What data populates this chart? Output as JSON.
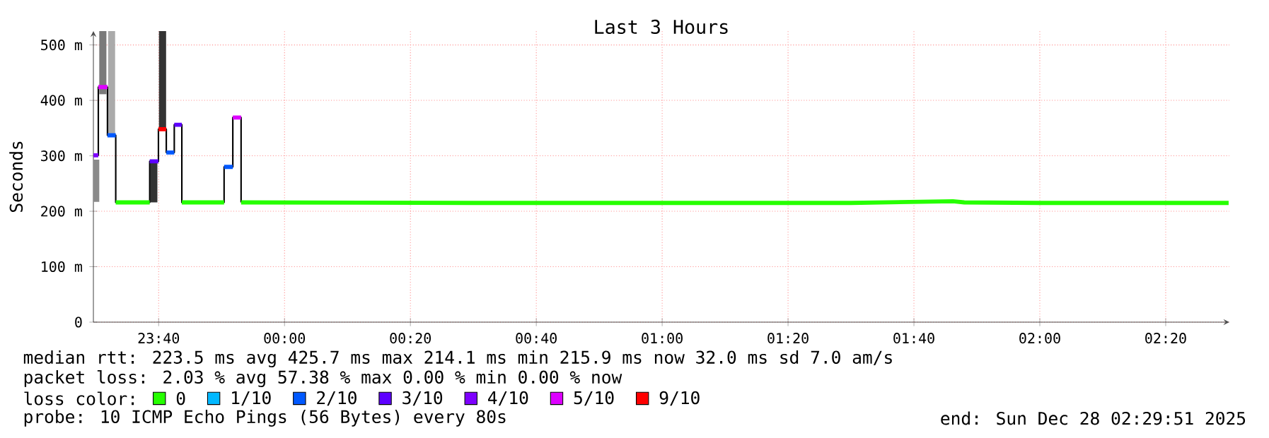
{
  "chart_data": {
    "type": "line",
    "title": "Last 3 Hours",
    "ylabel": "Seconds",
    "xlim": [
      "2025-12-27T23:29:38",
      "2025-12-28T02:30:07"
    ],
    "ylim": [
      0,
      525
    ],
    "xticks": [
      {
        "value": "2025-12-27T23:40",
        "label": "23:40"
      },
      {
        "value": "2025-12-28T00:00",
        "label": "00:00"
      },
      {
        "value": "2025-12-28T00:20",
        "label": "00:20"
      },
      {
        "value": "2025-12-28T00:40",
        "label": "00:40"
      },
      {
        "value": "2025-12-28T01:00",
        "label": "01:00"
      },
      {
        "value": "2025-12-28T01:20",
        "label": "01:20"
      },
      {
        "value": "2025-12-28T01:40",
        "label": "01:40"
      },
      {
        "value": "2025-12-28T02:00",
        "label": "02:00"
      },
      {
        "value": "2025-12-28T02:20",
        "label": "02:20"
      }
    ],
    "yticks": [
      0,
      {
        "value": 100,
        "label": "100 m"
      },
      {
        "value": 200,
        "label": "200 m"
      },
      {
        "value": 300,
        "label": "300 m"
      },
      {
        "value": 400,
        "label": "400 m"
      },
      {
        "value": 500,
        "label": "500 m"
      }
    ],
    "grid": true,
    "legend": "bottom",
    "legend_title": "loss color:",
    "series": [
      {
        "type": "bar",
        "colors": [
          "#8a8a8a",
          "#7a7a7a",
          "#aaaaaa",
          "#333333",
          "#333333"
        ],
        "x": [
          "2025-12-27T23:30:00",
          "2025-12-27T23:31:08",
          "2025-12-27T23:32:31",
          "2025-12-27T23:39:14",
          "2025-12-27T23:40:37"
        ],
        "base": [
          217,
          411,
          339,
          216,
          348
        ],
        "values": [
          76,
          114,
          186,
          74,
          177
        ]
      },
      {
        "type": "step",
        "color": "#000000",
        "x": [
          "2025-12-27T23:29:38",
          "2025-12-27T23:30:25",
          "2025-12-27T23:31:52",
          "2025-12-27T23:33:11",
          "2025-12-27T23:38:35",
          "2025-12-27T23:39:58",
          "2025-12-27T23:41:13",
          "2025-12-27T23:42:29",
          "2025-12-27T23:43:41",
          "2025-12-27T23:50:24",
          "2025-12-27T23:51:47",
          "2025-12-27T23:53:06"
        ],
        "values": [
          301,
          424,
          337,
          216,
          290,
          348,
          306,
          356,
          216,
          280,
          369,
          216
        ]
      },
      {
        "name": "0",
        "color": "#26ff00",
        "x": [
          "2025-12-27T23:33:11",
          "2025-12-27T23:38:35",
          "2025-12-27T23:42:00",
          "2025-12-27T23:43:41",
          "2025-12-27T23:50:24",
          "2025-12-27T23:51:36",
          "2025-12-27T23:53:06",
          "2025-12-28T00:30",
          "2025-12-28T01:00",
          "2025-12-28T01:30",
          "2025-12-28T01:46:12",
          "2025-12-28T01:48",
          "2025-12-28T02:00",
          "2025-12-28T02:30"
        ],
        "values": [
          216,
          216,
          null,
          216,
          216,
          null,
          216,
          215,
          215,
          215,
          218,
          216,
          215,
          215
        ]
      },
      {
        "name": "1/10",
        "color": "#00b8ff"
      },
      {
        "name": "2/10",
        "color": "#0059ff",
        "x": [
          "2025-12-27T23:31:52",
          "2025-12-27T23:33:11",
          "2025-12-27T23:36:00",
          "2025-12-27T23:41:13",
          "2025-12-27T23:42:29",
          "2025-12-27T23:45:00",
          "2025-12-27T23:50:24",
          "2025-12-27T23:51:47"
        ],
        "values": [
          337,
          337,
          null,
          306,
          306,
          null,
          280,
          280
        ]
      },
      {
        "name": "3/10",
        "color": "#5e00ff",
        "x": [
          "2025-12-27T23:38:35",
          "2025-12-27T23:39:58",
          "2025-12-27T23:41:24",
          "2025-12-27T23:42:29",
          "2025-12-27T23:43:41"
        ],
        "values": [
          290,
          290,
          null,
          356,
          356
        ]
      },
      {
        "name": "4/10",
        "color": "#7e00ff",
        "x": [
          "2025-12-27T23:29:38",
          "2025-12-27T23:30:25"
        ],
        "values": [
          301,
          301
        ]
      },
      {
        "name": "5/10",
        "color": "#dd00ff",
        "x": [
          "2025-12-27T23:30:25",
          "2025-12-27T23:31:52",
          "2025-12-27T23:42:00",
          "2025-12-27T23:51:47",
          "2025-12-27T23:53:06"
        ],
        "values": [
          424,
          424,
          null,
          369,
          369
        ]
      },
      {
        "name": "9/10",
        "color": "#ff0000",
        "x": [
          "2025-12-27T23:39:58",
          "2025-12-27T23:41:13"
        ],
        "values": [
          348,
          348
        ]
      }
    ],
    "annotations": [
      "median rtt: 223.5 ms avg 425.7 ms max 214.1 ms min 215.9 ms now 32.0 ms sd 7.0 am/s",
      "packet loss: 2.03 % avg 57.38 % max 0.00 % min 0.00 % now",
      "probe: 10 ICMP Echo Pings (56 Bytes) every 80s",
      "end: Sun Dec 28 02:29:51 2025"
    ]
  }
}
